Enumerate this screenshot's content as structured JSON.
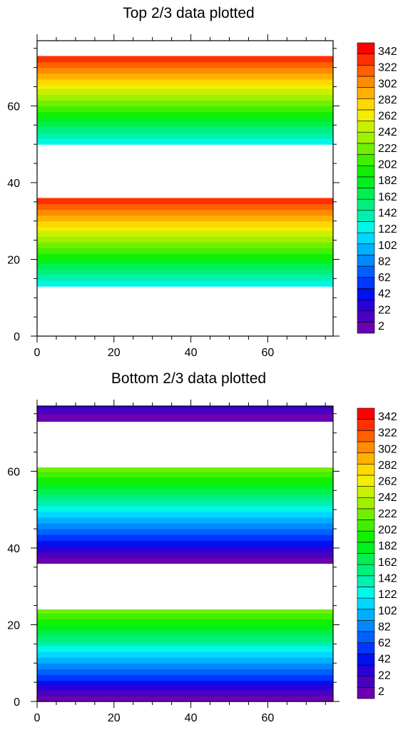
{
  "palette": [
    "#6a00b0",
    "#4a00c0",
    "#2a00d8",
    "#0010f0",
    "#0036ff",
    "#0060ff",
    "#0088ff",
    "#00b0ff",
    "#00d8ff",
    "#00f8e8",
    "#00f0b0",
    "#00f080",
    "#00f050",
    "#00f020",
    "#10f000",
    "#40f000",
    "#70f000",
    "#a0f000",
    "#c8f000",
    "#f0f000",
    "#ffd800",
    "#ffb000",
    "#ff8c00",
    "#ff6000",
    "#ff3000",
    "#ff0000"
  ],
  "chart_data": [
    {
      "type": "heatmap",
      "title": "Top 2/3 data plotted",
      "xlim": [
        0,
        77
      ],
      "ylim": [
        0,
        77
      ],
      "x_ticks": [
        0,
        20,
        40,
        60
      ],
      "y_ticks": [
        0,
        20,
        40,
        60
      ],
      "bands": [
        {
          "y_start": 13,
          "y_end": 36,
          "value_start": 125,
          "value_end": 352
        },
        {
          "y_start": 50,
          "y_end": 73,
          "value_start": 125,
          "value_end": 352
        }
      ],
      "colorbar": {
        "levels": [
          "2",
          "22",
          "42",
          "62",
          "82",
          "102",
          "122",
          "142",
          "162",
          "182",
          "202",
          "222",
          "242",
          "262",
          "282",
          "302",
          "322",
          "342"
        ]
      }
    },
    {
      "type": "heatmap",
      "title": "Bottom 2/3 data plotted",
      "xlim": [
        0,
        77
      ],
      "ylim": [
        0,
        77
      ],
      "x_ticks": [
        0,
        20,
        40,
        60
      ],
      "y_ticks": [
        0,
        20,
        40,
        60
      ],
      "bands": [
        {
          "y_start": 0,
          "y_end": 24,
          "value_start": 0,
          "value_end": 235
        },
        {
          "y_start": 36,
          "y_end": 61,
          "value_start": 0,
          "value_end": 235
        },
        {
          "y_start": 73,
          "y_end": 77,
          "value_start": 0,
          "value_end": 30
        }
      ],
      "colorbar": {
        "levels": [
          "2",
          "22",
          "42",
          "62",
          "82",
          "102",
          "122",
          "142",
          "162",
          "182",
          "202",
          "222",
          "242",
          "262",
          "282",
          "302",
          "322",
          "342"
        ]
      }
    }
  ]
}
